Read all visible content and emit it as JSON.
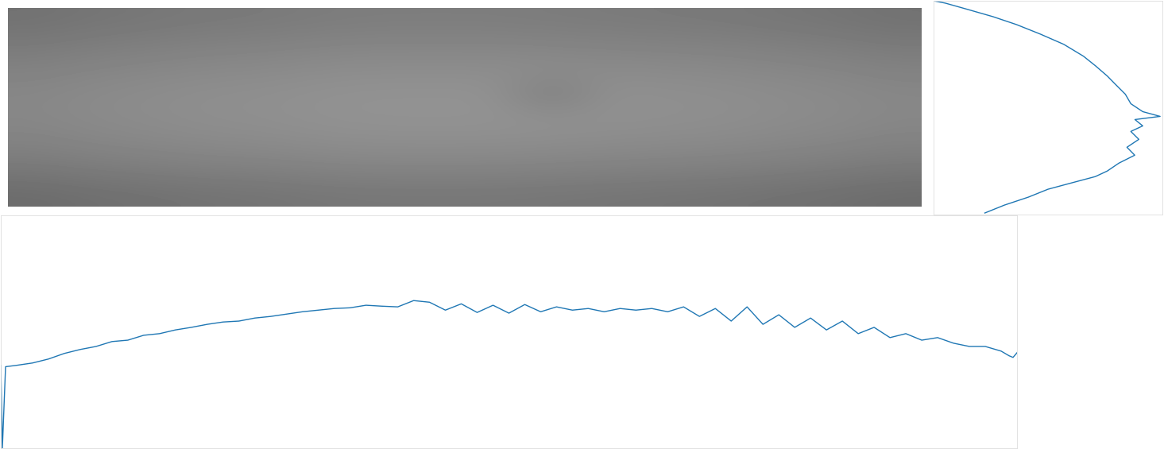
{
  "chart_data": [
    {
      "type": "heatmap",
      "cells": [
        [
          114,
          117,
          119,
          121,
          122,
          124,
          125,
          125,
          125,
          124,
          123,
          122,
          121,
          119,
          117,
          114
        ],
        [
          122,
          125,
          127,
          129,
          130,
          132,
          133,
          133,
          133,
          132,
          131,
          130,
          129,
          127,
          125,
          122
        ],
        [
          130,
          133,
          135,
          137,
          138,
          140,
          141,
          141,
          141,
          140,
          139,
          138,
          137,
          135,
          133,
          130
        ],
        [
          135,
          138,
          140,
          142,
          143,
          145,
          146,
          146,
          146,
          125,
          144,
          143,
          142,
          140,
          138,
          135
        ],
        [
          135,
          138,
          140,
          142,
          143,
          145,
          146,
          146,
          146,
          145,
          144,
          143,
          142,
          140,
          138,
          135
        ],
        [
          130,
          133,
          135,
          137,
          138,
          140,
          141,
          141,
          141,
          140,
          139,
          138,
          137,
          135,
          133,
          130
        ],
        [
          120,
          123,
          125,
          127,
          128,
          130,
          131,
          131,
          131,
          130,
          129,
          128,
          127,
          125,
          123,
          120
        ],
        [
          108,
          111,
          113,
          115,
          116,
          118,
          119,
          119,
          119,
          118,
          117,
          116,
          115,
          113,
          111,
          108
        ]
      ],
      "value_range": [
        0,
        255
      ],
      "tick_labels": false
    },
    {
      "type": "line",
      "x": [
        0,
        2,
        6,
        20,
        40,
        60,
        80,
        100,
        120,
        140,
        160,
        180,
        200,
        220,
        240,
        260,
        280,
        300,
        320,
        340,
        360,
        380,
        400,
        420,
        440,
        460,
        480,
        500,
        520,
        540,
        560,
        580,
        600,
        620,
        640,
        660,
        680,
        700,
        720,
        740,
        760,
        780,
        800,
        820,
        840,
        860,
        880,
        900,
        920,
        940,
        960,
        980,
        1000,
        1020,
        1040,
        1060,
        1080,
        1100,
        1120,
        1140,
        1160,
        1180,
        1200,
        1220,
        1240,
        1260,
        1270,
        1275,
        1280
      ],
      "values": [
        35.6,
        0,
        35,
        35.6,
        36.6,
        38.3,
        40.7,
        42.4,
        43.7,
        45.8,
        46.4,
        48.5,
        49.2,
        50.8,
        51.9,
        53.2,
        54.2,
        54.6,
        55.9,
        56.6,
        57.6,
        58.6,
        59.3,
        60,
        60.3,
        61.4,
        61,
        60.7,
        63.4,
        62.7,
        59.3,
        62,
        58.3,
        61.4,
        58,
        61.7,
        58.6,
        60.7,
        59.3,
        60,
        58.6,
        60,
        59.3,
        60,
        58.6,
        60.7,
        56.6,
        60,
        54.6,
        60.7,
        53.2,
        57.3,
        51.9,
        55.9,
        50.8,
        54.6,
        49.2,
        51.9,
        47.5,
        49.2,
        46.4,
        47.5,
        45.1,
        43.7,
        43.7,
        41.7,
        39.7,
        39,
        41
      ],
      "color": "#1f77b4",
      "xlim": [
        0,
        1280
      ],
      "ylim": [
        0,
        100
      ],
      "tick_labels": false
    },
    {
      "type": "line",
      "x": [
        0,
        5.2,
        13.8,
        25.9,
        36.2,
        46.6,
        56.9,
        65.5,
        70.7,
        75.9,
        79.3,
        83.8,
        86.2,
        91.4,
        99,
        88,
        91.4,
        86.2,
        89.7,
        84.5,
        87.9,
        81,
        75.9,
        70.7,
        60.3,
        50,
        41.4,
        31,
        22.4
      ],
      "values": [
        0,
        3,
        10,
        20,
        30,
        42,
        55,
        70,
        82,
        95,
        105,
        118,
        130,
        140,
        146,
        150,
        158,
        165,
        175,
        185,
        195,
        205,
        215,
        222,
        230,
        238,
        248,
        258,
        268
      ],
      "color": "#1f77b4",
      "xlim": [
        0,
        100
      ],
      "ylim": [
        270,
        0
      ],
      "tick_labels": false
    }
  ]
}
